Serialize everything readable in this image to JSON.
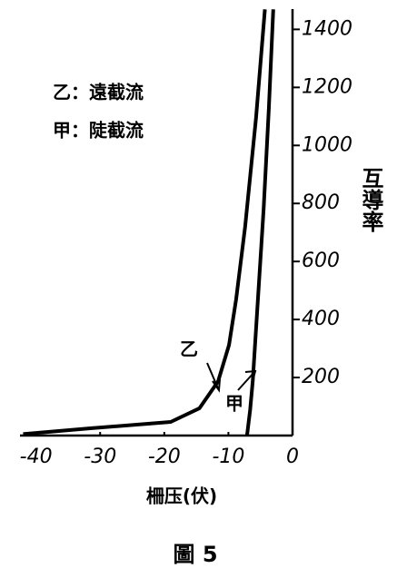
{
  "chart_data": {
    "type": "line",
    "x_label": "柵压(伏)",
    "y_label": "互導率",
    "caption": "圖 5",
    "xlim": [
      -42.5,
      0
    ],
    "xticks": [
      -40,
      -30,
      -20,
      -10,
      0
    ],
    "ylim": [
      0,
      1470
    ],
    "yticks": [
      200,
      400,
      600,
      800,
      1000,
      1200,
      1400
    ],
    "series": [
      {
        "name": "甲：陡截流",
        "label": "甲",
        "color": "#000000",
        "x": [
          -7.1,
          -6.6,
          -6.2,
          -5.4,
          -4.5,
          -3.7,
          -3.0
        ],
        "values": [
          0,
          90,
          187,
          469,
          781,
          1125,
          1469
        ]
      },
      {
        "name": "乙：遠截流",
        "label": "乙",
        "color": "#000000",
        "x": [
          -42,
          -31.5,
          -19,
          -14.5,
          -11.6,
          -9.9,
          -8.8,
          -7.4,
          -5.7,
          -4.3
        ],
        "values": [
          5,
          25,
          47,
          94,
          187,
          312,
          469,
          719,
          1094,
          1469
        ]
      }
    ]
  }
}
